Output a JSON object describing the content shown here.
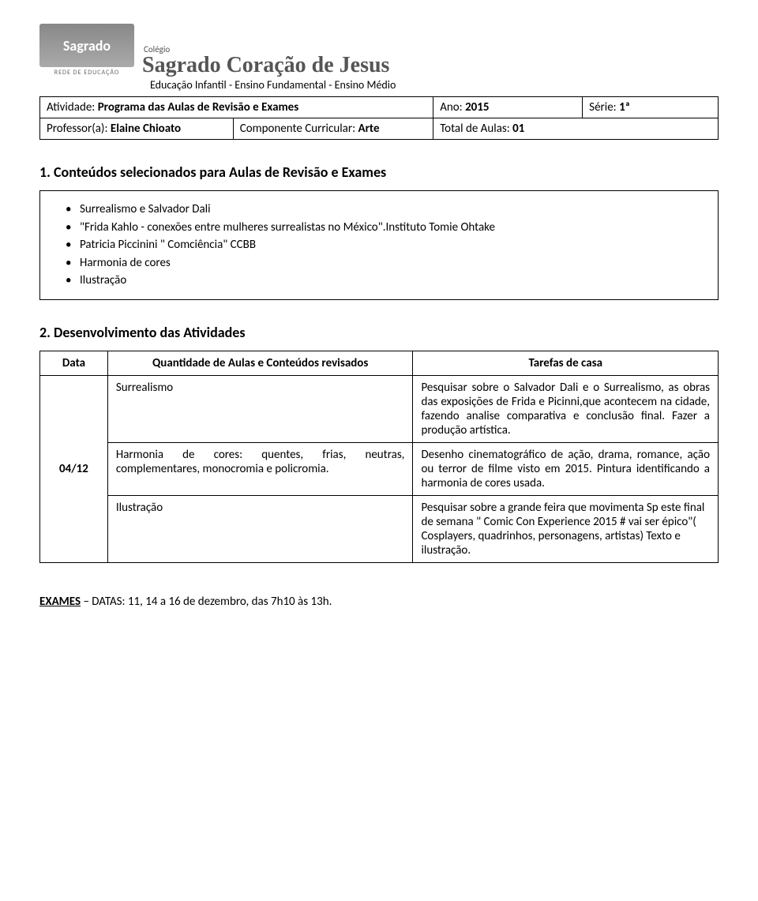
{
  "header": {
    "logo_main": "Sagrado",
    "logo_sub": "REDE DE EDUCAÇÃO",
    "colegio_label": "Colégio",
    "colegio_name": "Sagrado Coração de Jesus",
    "subtitle": "Educação Infantil - Ensino Fundamental - Ensino Médio"
  },
  "info": {
    "activity_label": "Atividade: ",
    "activity_value": "Programa das Aulas de Revisão e Exames",
    "ano_label": "Ano: ",
    "ano_value": "2015",
    "serie_label": "Série: ",
    "serie_value": "1ª",
    "professor_label": "Professor(a): ",
    "professor_value": "Elaine Chioato",
    "componente_label": "Componente Curricular: ",
    "componente_value": "Arte",
    "total_label": "Total de Aulas: ",
    "total_value": "01"
  },
  "section1": {
    "title": "1. Conteúdos selecionados para Aulas de Revisão e Exames",
    "items": [
      " Surrealismo e Salvador Dali",
      "\"Frida Kahlo - conexões entre mulheres surrealistas no México\".Instituto Tomie Ohtake",
      "Patricia Piccinini \" Comciência\" CCBB",
      "Harmonia de cores",
      "Ilustração"
    ]
  },
  "section2": {
    "title": "2. Desenvolvimento das Atividades",
    "headers": {
      "data": "Data",
      "content": "Quantidade de Aulas e Conteúdos revisados",
      "task": "Tarefas de casa"
    },
    "date": "04/12",
    "rows": [
      {
        "content": "Surrealismo",
        "task": "Pesquisar sobre o Salvador Dali e o Surrealismo, as obras das exposições de Frida e Picinni,que acontecem na cidade, fazendo analise comparativa e conclusão final. Fazer a produção artística."
      },
      {
        "content": "Harmonia de cores: quentes, frias, neutras, complementares, monocromia e policromia.",
        "task": "Desenho cinematográfico de ação, drama, romance, ação ou terror de filme visto em 2015.\nPintura identificando a harmonia de cores usada."
      },
      {
        "content": "Ilustração",
        "task": "Pesquisar sobre a grande feira que movimenta Sp este final de semana \" Comic Con Experience 2015 # vai ser épico\"( Cosplayers, quadrinhos, personagens, artistas)\nTexto e ilustração."
      }
    ]
  },
  "footer": {
    "exam_label": "EXAMES",
    "exam_text": " – DATAS: 11, 14 a 16 de dezembro, das 7h10 às 13h."
  }
}
